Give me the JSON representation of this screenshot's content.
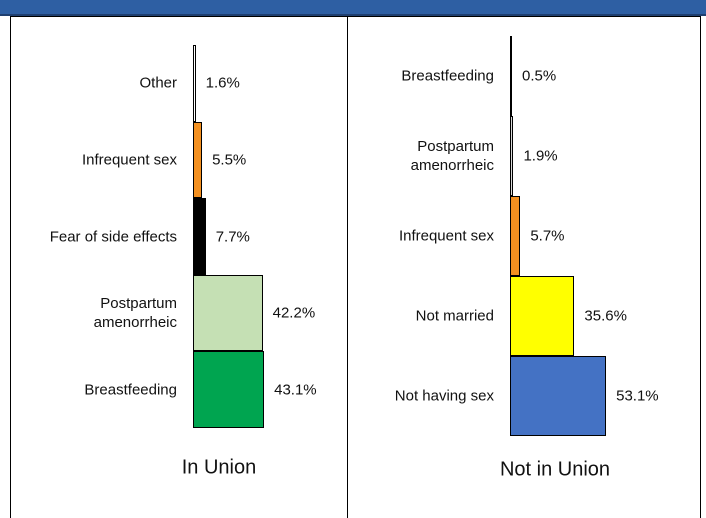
{
  "chart_data": [
    {
      "type": "bar",
      "title": "In Union",
      "categories": [
        "Other",
        "Infrequent sex",
        "Fear of side effects",
        "Postpartum amenorrheic",
        "Breastfeeding"
      ],
      "values": [
        1.6,
        5.5,
        7.7,
        42.2,
        43.1
      ],
      "value_labels": [
        "1.6%",
        "5.5%",
        "7.7%",
        "42.2%",
        "43.1%"
      ],
      "colors": [
        "#ffffff",
        "#f39020",
        "#000000",
        "#c5e0b4",
        "#00a550"
      ]
    },
    {
      "type": "bar",
      "title": "Not in Union",
      "categories": [
        "Breastfeeding",
        "Postpartum amenorrheic",
        "Infrequent sex",
        "Not married",
        "Not having sex"
      ],
      "values": [
        0.5,
        1.9,
        5.7,
        35.6,
        53.1
      ],
      "value_labels": [
        "0.5%",
        "1.9%",
        "5.7%",
        "35.6%",
        "53.1%"
      ],
      "colors": [
        "#ffffff",
        "#d9d9d9",
        "#f39020",
        "#ffff00",
        "#4472c4"
      ]
    }
  ]
}
